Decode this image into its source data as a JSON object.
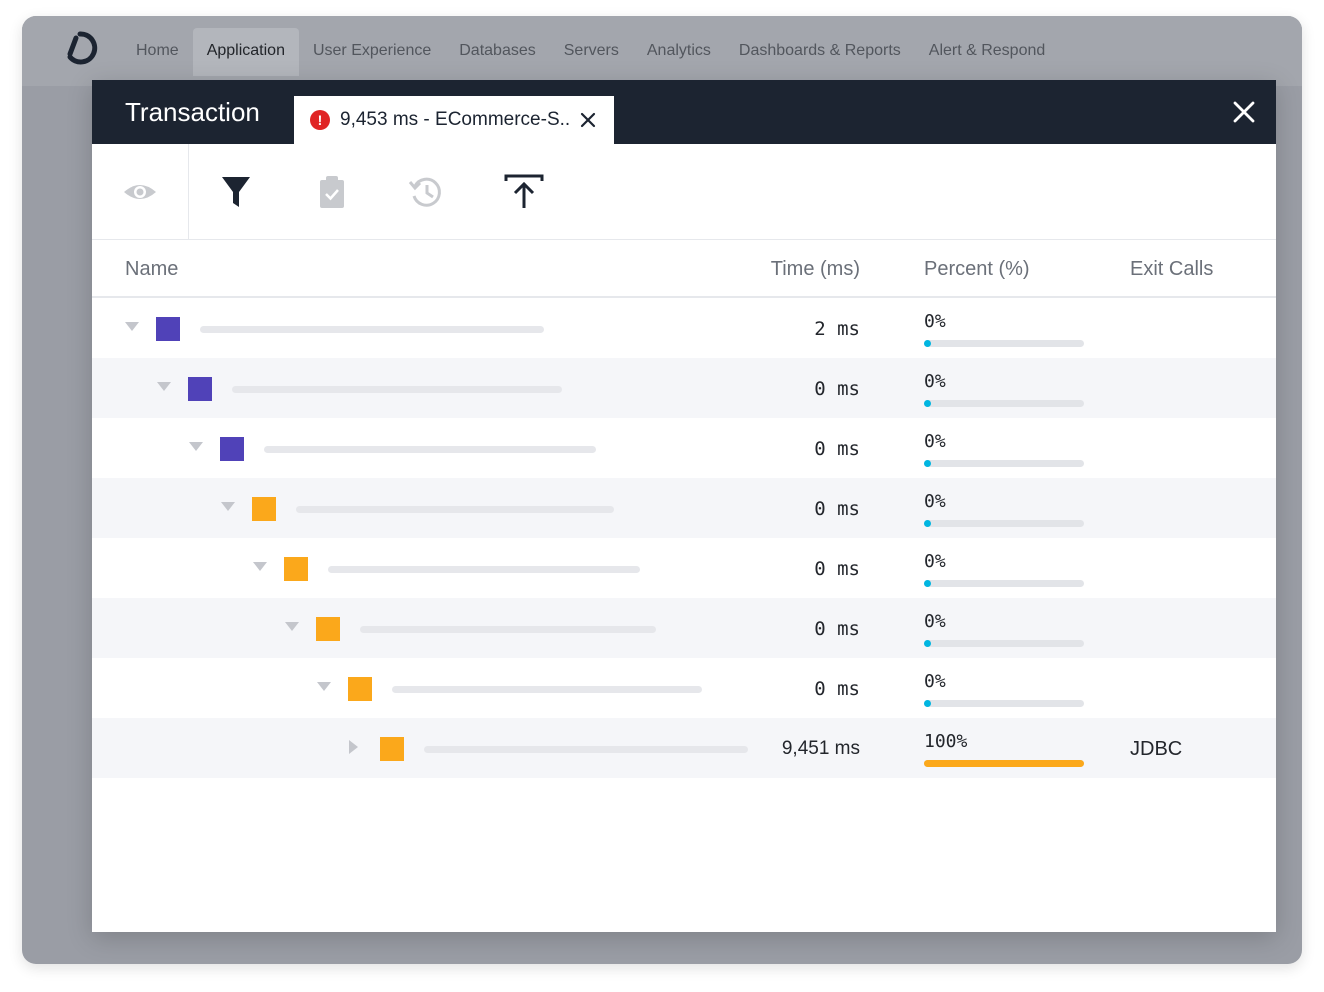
{
  "nav": {
    "items": [
      {
        "label": "Home"
      },
      {
        "label": "Application",
        "active": true
      },
      {
        "label": "User Experience"
      },
      {
        "label": "Databases"
      },
      {
        "label": "Servers"
      },
      {
        "label": "Analytics"
      },
      {
        "label": "Dashboards & Reports"
      },
      {
        "label": "Alert & Respond"
      }
    ]
  },
  "modal": {
    "title": "Transaction",
    "tab_label": "9,453 ms - ECommerce-S..",
    "tab_icon": "alert-circle-icon",
    "colors": {
      "header_bg": "#1c2431",
      "alert": "#e02424",
      "purple": "#5042b8",
      "orange": "#fba81b",
      "progress_low": "#00b6e1"
    }
  },
  "toolbar": {
    "tools": [
      "eye-icon",
      "filter-icon",
      "clipboard-check-icon",
      "history-icon",
      "upload-icon"
    ]
  },
  "table": {
    "columns": {
      "name": "Name",
      "time": "Time (ms)",
      "percent": "Percent (%)",
      "exit": "Exit Calls"
    },
    "rows": [
      {
        "time": "2 ms",
        "percent": "0%",
        "pct_value": 0,
        "color": "purple",
        "expanded": true,
        "exit": ""
      },
      {
        "time": "0 ms",
        "percent": "0%",
        "pct_value": 0,
        "color": "purple",
        "expanded": true,
        "exit": ""
      },
      {
        "time": "0 ms",
        "percent": "0%",
        "pct_value": 0,
        "color": "purple",
        "expanded": true,
        "exit": ""
      },
      {
        "time": "0 ms",
        "percent": "0%",
        "pct_value": 0,
        "color": "orange",
        "expanded": true,
        "exit": ""
      },
      {
        "time": "0 ms",
        "percent": "0%",
        "pct_value": 0,
        "color": "orange",
        "expanded": true,
        "exit": ""
      },
      {
        "time": "0 ms",
        "percent": "0%",
        "pct_value": 0,
        "color": "orange",
        "expanded": true,
        "exit": ""
      },
      {
        "time": "0 ms",
        "percent": "0%",
        "pct_value": 0,
        "color": "orange",
        "expanded": true,
        "exit": ""
      },
      {
        "time": "9,451 ms",
        "percent": "100%",
        "pct_value": 100,
        "color": "orange",
        "expanded": false,
        "exit": "JDBC"
      }
    ]
  }
}
